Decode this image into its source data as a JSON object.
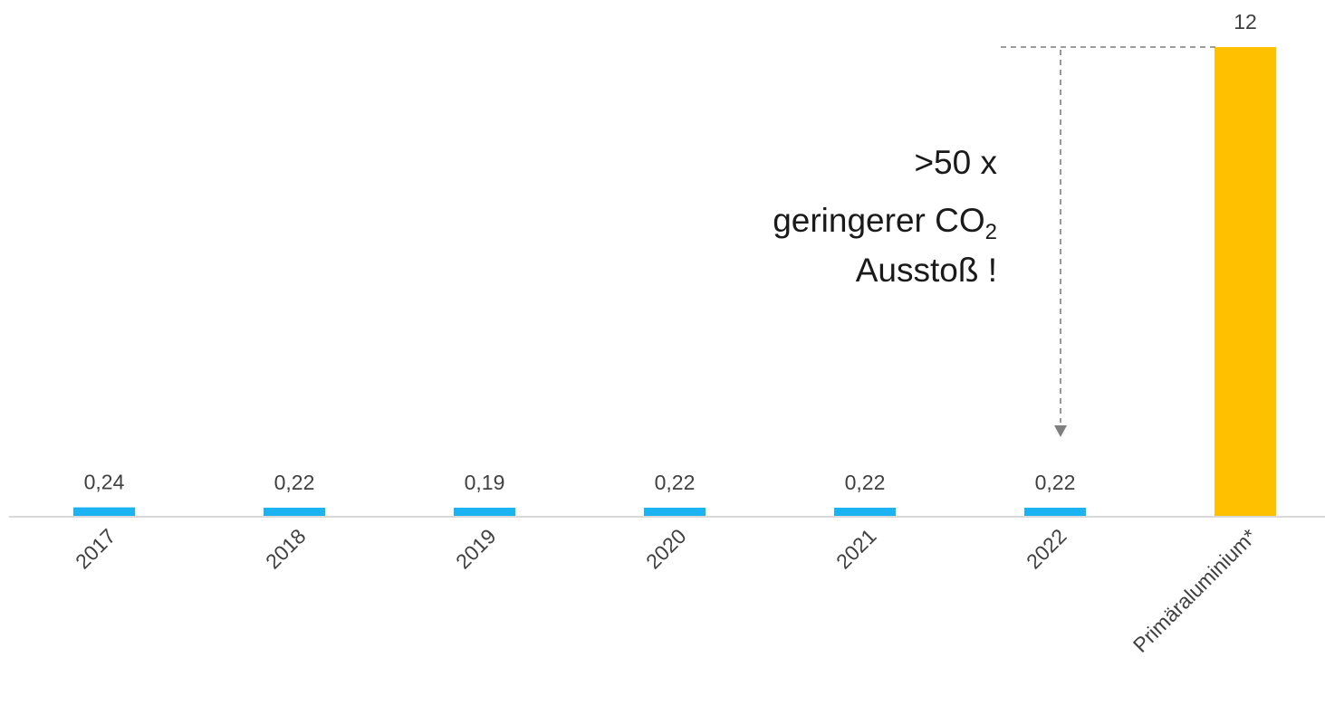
{
  "chart_data": {
    "type": "bar",
    "title": "",
    "xlabel": "",
    "ylabel": "",
    "categories": [
      "2017",
      "2018",
      "2019",
      "2020",
      "2021",
      "2022",
      "Primäraluminium*"
    ],
    "values": [
      0.24,
      0.22,
      0.19,
      0.22,
      0.22,
      0.22,
      12
    ],
    "value_labels": [
      "0,24",
      "0,22",
      "0,19",
      "0,22",
      "0,22",
      "0,22",
      "12"
    ],
    "ylim": [
      0,
      12
    ],
    "grid": false,
    "legend": "none",
    "bar_colors": [
      "#1BB3F2",
      "#1BB3F2",
      "#1BB3F2",
      "#1BB3F2",
      "#1BB3F2",
      "#1BB3F2",
      "#FFC000"
    ],
    "axis_color": "#D9D9D9",
    "annotation": {
      "line1": ">50 x",
      "line2_main": "geringerer CO",
      "line2_sub": "2",
      "line3": "Ausstoß !",
      "arrow_color": "#7F7F7F"
    }
  }
}
